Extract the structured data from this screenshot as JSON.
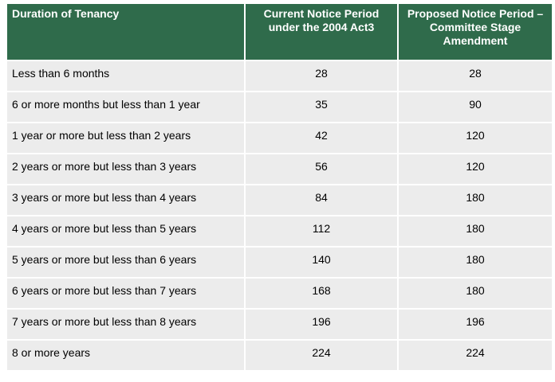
{
  "table": {
    "headers": [
      "Duration of Tenancy",
      "Current Notice Period under the 2004 Act3",
      "Proposed Notice Period – Committee Stage Amendment"
    ],
    "rows": [
      [
        "Less than 6 months",
        "28",
        "28"
      ],
      [
        "6 or more months but less than 1 year",
        "35",
        "90"
      ],
      [
        "1 year or more but less than 2 years",
        "42",
        "120"
      ],
      [
        "2 years or more but less than 3 years",
        "56",
        "120"
      ],
      [
        "3 years or more but less than 4 years",
        "84",
        "180"
      ],
      [
        "4 years or more but less than 5 years",
        "112",
        "180"
      ],
      [
        "5 years or more but less than 6 years",
        "140",
        "180"
      ],
      [
        "6 years or more but less than 7 years",
        "168",
        "180"
      ],
      [
        "7 years or more but less than 8 years",
        "196",
        "196"
      ],
      [
        "8 or more years",
        "224",
        "224"
      ]
    ]
  },
  "colors": {
    "header_bg": "#2f6b4b",
    "header_text": "#ffffff",
    "row_bg": "#ececec"
  }
}
